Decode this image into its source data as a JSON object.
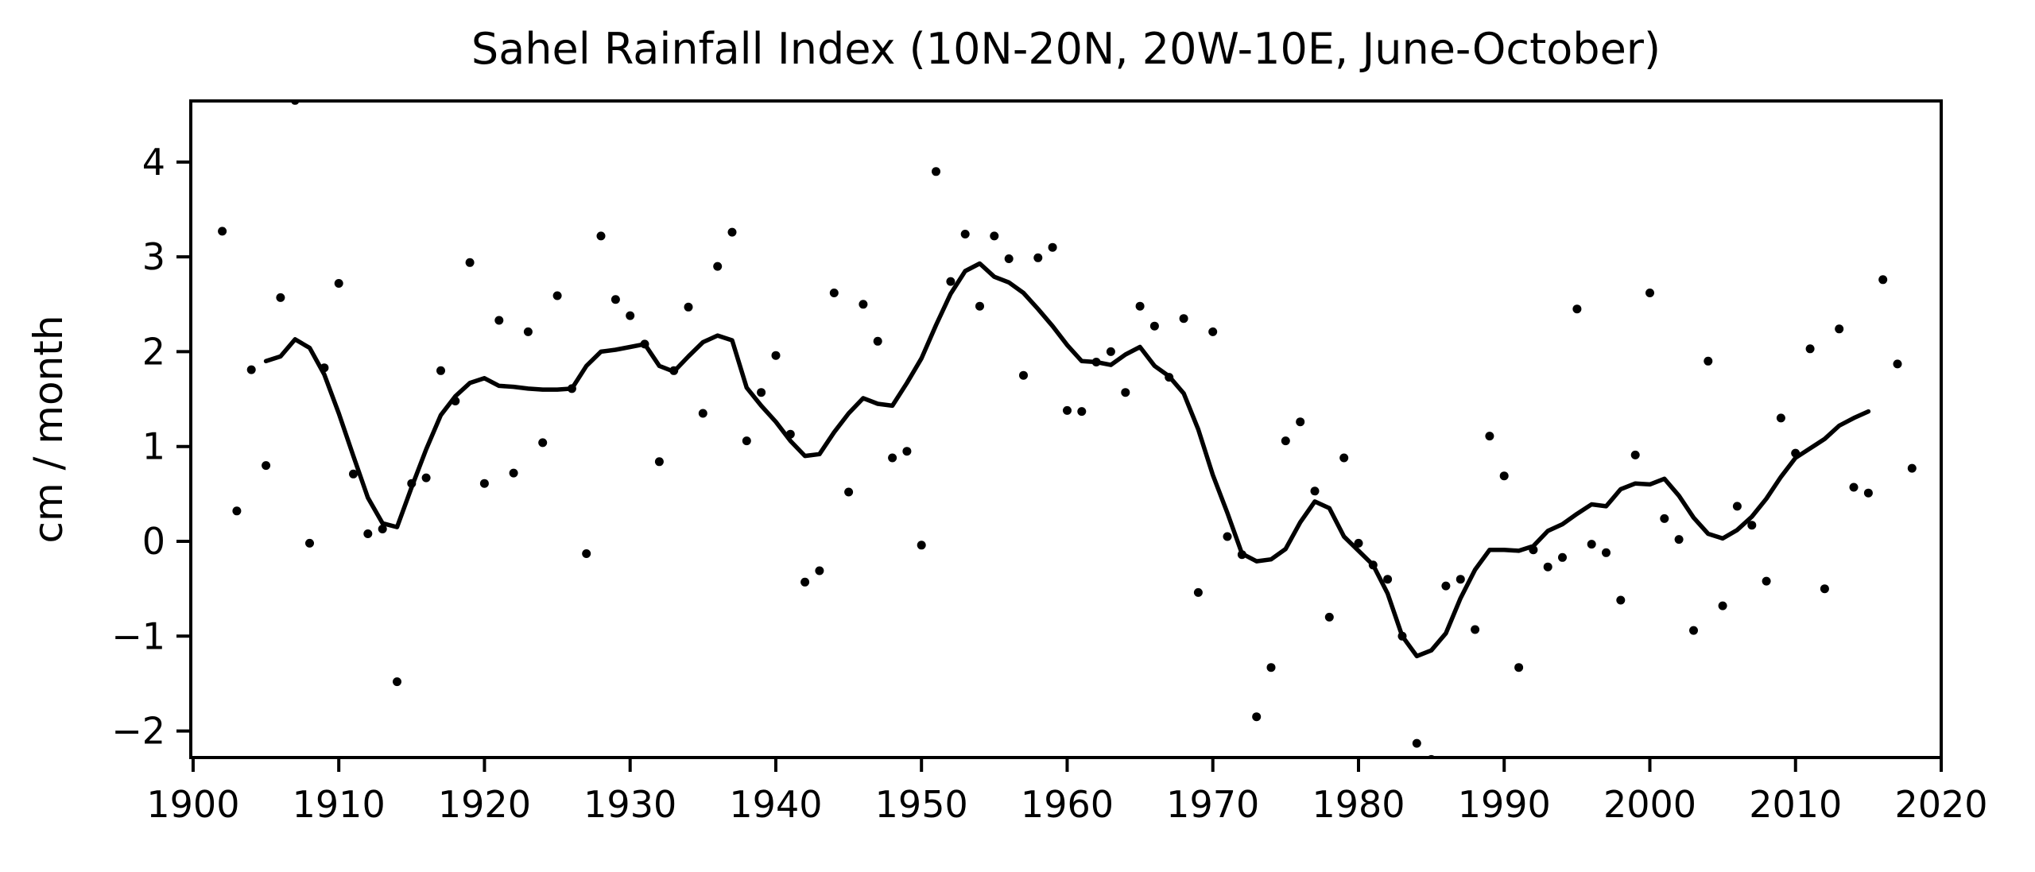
{
  "figure": {
    "title": "Sahel Rainfall Index (10N-20N, 20W-10E, June-October)",
    "ylabel": "cm / month",
    "background_color": "#ffffff",
    "foreground_color": "#000000"
  },
  "axes": {
    "xlim": [
      1899.84,
      2020
    ],
    "ylim": [
      -2.28,
      4.644
    ],
    "xticks": [
      {
        "v": 1900,
        "label": "1900"
      },
      {
        "v": 1910,
        "label": "1910"
      },
      {
        "v": 1920,
        "label": "1920"
      },
      {
        "v": 1930,
        "label": "1930"
      },
      {
        "v": 1940,
        "label": "1940"
      },
      {
        "v": 1950,
        "label": "1950"
      },
      {
        "v": 1960,
        "label": "1960"
      },
      {
        "v": 1970,
        "label": "1970"
      },
      {
        "v": 1980,
        "label": "1980"
      },
      {
        "v": 1990,
        "label": "1990"
      },
      {
        "v": 2000,
        "label": "2000"
      },
      {
        "v": 2010,
        "label": "2010"
      },
      {
        "v": 2020,
        "label": "2020"
      }
    ],
    "yticks": [
      {
        "v": -2,
        "label": "−2"
      },
      {
        "v": -1,
        "label": "−1"
      },
      {
        "v": 0,
        "label": "0"
      },
      {
        "v": 1,
        "label": "1"
      },
      {
        "v": 2,
        "label": "2"
      },
      {
        "v": 3,
        "label": "3"
      },
      {
        "v": 4,
        "label": "4"
      }
    ]
  },
  "chart_data": {
    "type": "scatter",
    "title": "Sahel Rainfall Index (10N-20N, 20W-10E, June-October)",
    "xlabel": "",
    "ylabel": "cm / month",
    "xlim": [
      1899.84,
      2020
    ],
    "ylim": [
      -2.28,
      4.644
    ],
    "grid": false,
    "legend": "none",
    "series": [
      {
        "name": "annual-values",
        "type": "scatter",
        "marker": "dot",
        "color": "#000000",
        "x": [
          1902,
          1903,
          1904,
          1905,
          1906,
          1907,
          1908,
          1909,
          1910,
          1911,
          1912,
          1913,
          1914,
          1915,
          1916,
          1917,
          1918,
          1919,
          1920,
          1921,
          1922,
          1923,
          1924,
          1925,
          1926,
          1927,
          1928,
          1929,
          1930,
          1931,
          1932,
          1933,
          1934,
          1935,
          1936,
          1937,
          1938,
          1939,
          1940,
          1941,
          1942,
          1943,
          1944,
          1945,
          1946,
          1947,
          1948,
          1949,
          1950,
          1951,
          1952,
          1953,
          1954,
          1955,
          1956,
          1957,
          1958,
          1959,
          1960,
          1961,
          1962,
          1963,
          1964,
          1965,
          1966,
          1967,
          1968,
          1969,
          1970,
          1971,
          1972,
          1973,
          1974,
          1975,
          1976,
          1977,
          1978,
          1979,
          1980,
          1981,
          1982,
          1983,
          1984,
          1985,
          1986,
          1987,
          1988,
          1989,
          1990,
          1991,
          1992,
          1993,
          1994,
          1995,
          1996,
          1997,
          1998,
          1999,
          2000,
          2001,
          2002,
          2003,
          2004,
          2005,
          2006,
          2007,
          2008,
          2009,
          2010,
          2011,
          2012,
          2013,
          2014,
          2015,
          2016,
          2017,
          2018
        ],
        "y": [
          3.27,
          0.32,
          1.81,
          0.8,
          2.57,
          4.65,
          -0.02,
          1.83,
          2.72,
          0.71,
          0.08,
          0.13,
          -1.48,
          0.61,
          0.67,
          1.8,
          1.48,
          2.94,
          0.61,
          2.33,
          0.72,
          2.21,
          1.04,
          2.59,
          1.61,
          -0.13,
          3.22,
          2.55,
          2.38,
          2.08,
          0.84,
          1.8,
          2.47,
          1.35,
          2.9,
          3.26,
          1.06,
          1.57,
          1.96,
          1.13,
          -0.43,
          -0.31,
          2.62,
          0.52,
          2.5,
          2.11,
          0.88,
          0.95,
          -0.04,
          3.9,
          2.74,
          3.24,
          2.48,
          3.22,
          2.98,
          1.75,
          2.99,
          3.1,
          1.38,
          1.37,
          1.89,
          2.0,
          1.57,
          2.48,
          2.27,
          1.73,
          2.35,
          -0.54,
          2.21,
          0.05,
          -0.14,
          -1.85,
          -1.33,
          1.06,
          1.26,
          0.53,
          -0.8,
          0.88,
          -0.02,
          -0.25,
          -0.4,
          -1.0,
          -2.13,
          -2.3,
          -0.47,
          -0.4,
          -0.93,
          1.11,
          0.69,
          -1.33,
          -0.09,
          -0.27,
          -0.17,
          2.45,
          -0.03,
          -0.12,
          -0.62,
          0.91,
          2.62,
          0.24,
          0.02,
          -0.94,
          1.9,
          -0.68,
          0.37,
          0.17,
          -0.42,
          1.3,
          0.93,
          2.03,
          -0.5,
          2.24,
          0.57,
          0.51,
          2.76,
          1.87,
          0.77
        ]
      },
      {
        "name": "smoothed-index",
        "type": "line",
        "color": "#000000",
        "linewidth": 5.5,
        "x": [
          1905,
          1906,
          1907,
          1908,
          1909,
          1910,
          1911,
          1912,
          1913,
          1914,
          1915,
          1916,
          1917,
          1918,
          1919,
          1920,
          1921,
          1922,
          1923,
          1924,
          1925,
          1926,
          1927,
          1928,
          1929,
          1930,
          1931,
          1932,
          1933,
          1934,
          1935,
          1936,
          1937,
          1938,
          1939,
          1940,
          1941,
          1942,
          1943,
          1944,
          1945,
          1946,
          1947,
          1948,
          1949,
          1950,
          1951,
          1952,
          1953,
          1954,
          1955,
          1956,
          1957,
          1958,
          1959,
          1960,
          1961,
          1962,
          1963,
          1964,
          1965,
          1966,
          1967,
          1968,
          1969,
          1970,
          1971,
          1972,
          1973,
          1974,
          1975,
          1976,
          1977,
          1978,
          1979,
          1980,
          1981,
          1982,
          1983,
          1984,
          1985,
          1986,
          1987,
          1988,
          1989,
          1990,
          1991,
          1992,
          1993,
          1994,
          1995,
          1996,
          1997,
          1998,
          1999,
          2000,
          2001,
          2002,
          2003,
          2004,
          2005,
          2006,
          2007,
          2008,
          2009,
          2010,
          2011,
          2012,
          2013,
          2014,
          2015
        ],
        "y": [
          1.9,
          1.95,
          2.13,
          2.04,
          1.76,
          1.35,
          0.9,
          0.46,
          0.19,
          0.15,
          0.57,
          0.97,
          1.33,
          1.53,
          1.67,
          1.72,
          1.64,
          1.63,
          1.61,
          1.6,
          1.6,
          1.61,
          1.85,
          2.0,
          2.02,
          2.05,
          2.08,
          1.85,
          1.79,
          1.95,
          2.1,
          2.17,
          2.12,
          1.62,
          1.43,
          1.26,
          1.06,
          0.9,
          0.92,
          1.15,
          1.35,
          1.51,
          1.45,
          1.43,
          1.67,
          1.93,
          2.28,
          2.61,
          2.85,
          2.93,
          2.79,
          2.73,
          2.62,
          2.45,
          2.27,
          2.07,
          1.9,
          1.89,
          1.86,
          1.97,
          2.05,
          1.85,
          1.74,
          1.56,
          1.18,
          0.7,
          0.3,
          -0.13,
          -0.21,
          -0.19,
          -0.08,
          0.2,
          0.42,
          0.35,
          0.05,
          -0.1,
          -0.25,
          -0.55,
          -1.0,
          -1.21,
          -1.15,
          -0.97,
          -0.6,
          -0.3,
          -0.09,
          -0.09,
          -0.1,
          -0.05,
          0.11,
          0.18,
          0.29,
          0.39,
          0.37,
          0.55,
          0.61,
          0.6,
          0.66,
          0.48,
          0.25,
          0.08,
          0.03,
          0.12,
          0.26,
          0.45,
          0.68,
          0.88,
          0.98,
          1.08,
          1.22,
          1.3,
          1.37
        ]
      }
    ]
  }
}
